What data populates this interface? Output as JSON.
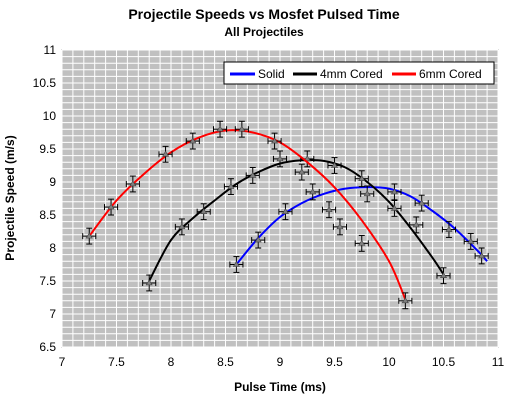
{
  "chart_data": {
    "type": "scatter",
    "title": "Projectile Speeds vs Mosfet Pulsed Time",
    "subtitle": "All Projectiles",
    "xlabel": "Pulse Time (ms)",
    "ylabel": "Projectile Speed (m/s)",
    "xlim": [
      7,
      11
    ],
    "ylim": [
      6.5,
      11
    ],
    "x_ticks": [
      "7",
      "7.5",
      "8",
      "8.5",
      "9",
      "9.5",
      "10",
      "10.5",
      "11"
    ],
    "y_ticks": [
      "6.5",
      "7",
      "7.5",
      "8",
      "8.5",
      "9",
      "9.5",
      "10",
      "10.5",
      "11"
    ],
    "grid": true,
    "legend_position": "top-right",
    "error_bars": {
      "x": 0.06,
      "y": 0.12
    },
    "series": [
      {
        "name": "Solid",
        "color": "#0000ff",
        "x": [
          8.6,
          8.8,
          9.05,
          9.3,
          9.55,
          9.8,
          10.05,
          10.3,
          10.55,
          10.75,
          10.85
        ],
        "y": [
          7.75,
          8.12,
          8.55,
          8.85,
          8.32,
          8.82,
          8.85,
          8.68,
          8.28,
          8.1,
          7.88
        ],
        "curve": [
          [
            8.6,
            7.75
          ],
          [
            8.8,
            8.15
          ],
          [
            9.0,
            8.47
          ],
          [
            9.2,
            8.68
          ],
          [
            9.4,
            8.82
          ],
          [
            9.6,
            8.9
          ],
          [
            9.8,
            8.92
          ],
          [
            10.0,
            8.9
          ],
          [
            10.2,
            8.78
          ],
          [
            10.4,
            8.56
          ],
          [
            10.6,
            8.3
          ],
          [
            10.8,
            7.98
          ],
          [
            10.9,
            7.8
          ]
        ]
      },
      {
        "name": "4mm Cored",
        "color": "#000000",
        "x": [
          7.8,
          8.1,
          8.3,
          8.55,
          8.75,
          9.0,
          9.25,
          9.5,
          9.75,
          10.05,
          10.25,
          10.5
        ],
        "y": [
          7.47,
          8.32,
          8.55,
          8.93,
          9.1,
          9.35,
          9.35,
          9.25,
          9.05,
          8.6,
          8.35,
          7.58
        ],
        "curve": [
          [
            7.8,
            7.5
          ],
          [
            8.0,
            8.12
          ],
          [
            8.2,
            8.45
          ],
          [
            8.4,
            8.72
          ],
          [
            8.6,
            8.97
          ],
          [
            8.8,
            9.15
          ],
          [
            9.0,
            9.28
          ],
          [
            9.2,
            9.33
          ],
          [
            9.4,
            9.32
          ],
          [
            9.6,
            9.22
          ],
          [
            9.8,
            9.0
          ],
          [
            10.0,
            8.7
          ],
          [
            10.2,
            8.3
          ],
          [
            10.4,
            7.85
          ],
          [
            10.5,
            7.6
          ]
        ]
      },
      {
        "name": "6mm Cored",
        "color": "#ff0000",
        "x": [
          7.25,
          7.45,
          7.65,
          7.95,
          8.2,
          8.45,
          8.65,
          8.95,
          9.2,
          9.45,
          9.75,
          10.15
        ],
        "y": [
          8.18,
          8.62,
          8.97,
          9.42,
          9.62,
          9.8,
          9.8,
          9.62,
          9.15,
          8.58,
          8.07,
          7.2
        ],
        "curve": [
          [
            7.25,
            8.18
          ],
          [
            7.5,
            8.72
          ],
          [
            7.75,
            9.12
          ],
          [
            8.0,
            9.45
          ],
          [
            8.25,
            9.67
          ],
          [
            8.5,
            9.78
          ],
          [
            8.75,
            9.75
          ],
          [
            9.0,
            9.6
          ],
          [
            9.25,
            9.3
          ],
          [
            9.5,
            8.92
          ],
          [
            9.75,
            8.42
          ],
          [
            10.0,
            7.8
          ],
          [
            10.15,
            7.22
          ]
        ]
      }
    ]
  }
}
